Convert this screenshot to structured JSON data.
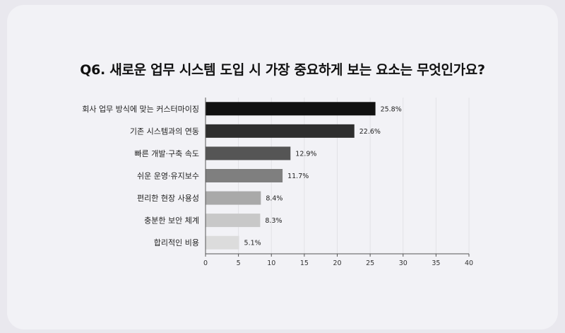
{
  "chart_data": {
    "type": "bar",
    "orientation": "horizontal",
    "title": "Q6. 새로운 업무 시스템 도입 시 가장 중요하게 보는 요소는 무엇인가요?",
    "categories": [
      "회사 업무 방식에 맞는 커스터마이징",
      "기존 시스템과의 연동",
      "빠른 개발·구축 속도",
      "쉬운 운영·유지보수",
      "편리한 현장 사용성",
      "충분한 보안 체계",
      "합리적인 비용"
    ],
    "values": [
      25.8,
      22.6,
      12.9,
      11.7,
      8.4,
      8.3,
      5.1
    ],
    "value_labels": [
      "25.8%",
      "22.6%",
      "12.9%",
      "11.7%",
      "8.4%",
      "8.3%",
      "5.1%"
    ],
    "bar_colors": [
      "#111111",
      "#2e2e2e",
      "#555555",
      "#7f7f7f",
      "#a9a9a9",
      "#c8c8c8",
      "#dcdcdc"
    ],
    "xlim": [
      0,
      40
    ],
    "xticks": [
      0,
      5,
      10,
      15,
      20,
      25,
      30,
      35,
      40
    ],
    "grid": true,
    "legend": "none"
  }
}
